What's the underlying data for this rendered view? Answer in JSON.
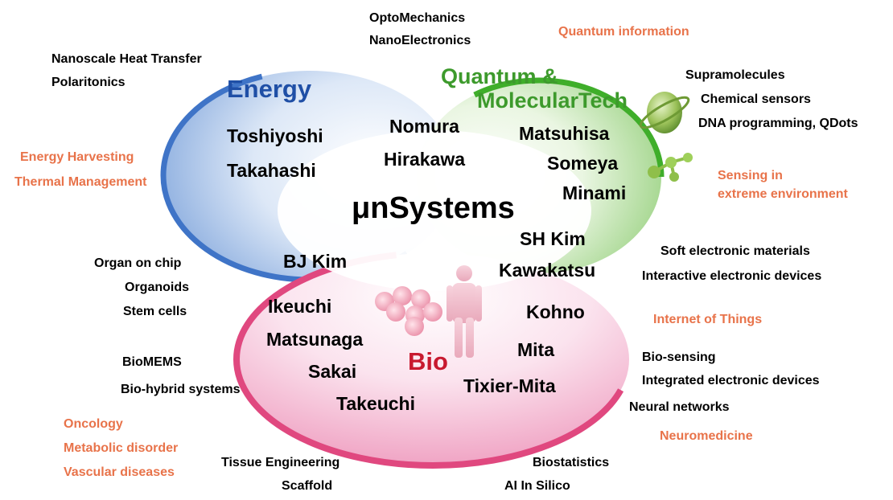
{
  "center": "μnSystems",
  "categories": {
    "energy": "Energy",
    "quantum_line1": "Quantum &",
    "quantum_line2": "MolecularTech",
    "bio": "Bio"
  },
  "names": {
    "toshiyoshi": "Toshiyoshi",
    "takahashi": "Takahashi",
    "nomura": "Nomura",
    "hirakawa": "Hirakawa",
    "matsuhisa": "Matsuhisa",
    "someya": "Someya",
    "minami": "Minami",
    "sh_kim": "SH Kim",
    "kawakatsu": "Kawakatsu",
    "bj_kim": "BJ Kim",
    "ikeuchi": "Ikeuchi",
    "matsunaga": "Matsunaga",
    "sakai": "Sakai",
    "takeuchi": "Takeuchi",
    "kohno": "Kohno",
    "mita": "Mita",
    "tixier_mita": "Tixier-Mita"
  },
  "topics": {
    "optomechanics": "OptoMechanics",
    "nanoelectronics": "NanoElectronics",
    "nanoscale_heat": "Nanoscale Heat Transfer",
    "polaritonics": "Polaritonics",
    "supramolecules": "Supramolecules",
    "chemical_sensors": "Chemical sensors",
    "dna_programming": "DNA programming, QDots",
    "soft_materials": "Soft electronic materials",
    "interactive_devices": "Interactive electronic devices",
    "organ_on_chip": "Organ on chip",
    "organoids": "Organoids",
    "stem_cells": "Stem cells",
    "biomems": "BioMEMS",
    "biohybrid": "Bio-hybrid systems",
    "bio_sensing": "Bio-sensing",
    "integrated_devices": "Integrated electronic devices",
    "neural_networks": "Neural networks",
    "tissue_engineering": "Tissue Engineering",
    "scaffold": "Scaffold",
    "biostatistics": "Biostatistics",
    "ai_in_silico": "AI In Silico"
  },
  "applications": {
    "quantum_information": "Quantum information",
    "energy_harvesting": "Energy Harvesting",
    "thermal_management": "Thermal Management",
    "sensing_line1": "Sensing in",
    "sensing_line2": "extreme environment",
    "iot": "Internet of Things",
    "neuromedicine": "Neuromedicine",
    "oncology": "Oncology",
    "metabolic": "Metabolic disorder",
    "vascular": "Vascular diseases"
  },
  "colors": {
    "energy": "#2f6cc4",
    "quantum": "#3fae2a",
    "bio": "#e0487f",
    "application_text": "#e8734a"
  },
  "icons": [
    "molecule-sphere-icon",
    "molecule-icon",
    "cells-icon",
    "human-figure-icon"
  ]
}
